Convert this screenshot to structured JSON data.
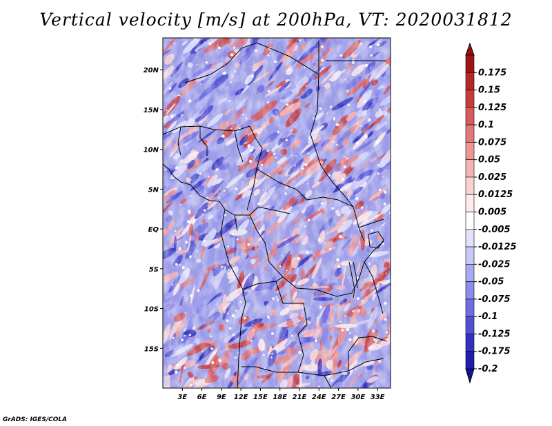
{
  "title": "Vertical velocity [m/s] at 200hPa, VT: 2020031812",
  "credit": "GrADS: IGES/COLA",
  "map": {
    "lon_range": [
      0,
      35
    ],
    "lat_range": [
      -20,
      24
    ],
    "lat_ticks": [
      {
        "lat": 20,
        "label": "20N"
      },
      {
        "lat": 15,
        "label": "15N"
      },
      {
        "lat": 10,
        "label": "10N"
      },
      {
        "lat": 5,
        "label": "5N"
      },
      {
        "lat": 0,
        "label": "EQ"
      },
      {
        "lat": -5,
        "label": "5S"
      },
      {
        "lat": -10,
        "label": "10S"
      },
      {
        "lat": -15,
        "label": "15S"
      }
    ],
    "lon_ticks": [
      {
        "lon": 3,
        "label": "3E"
      },
      {
        "lon": 6,
        "label": "6E"
      },
      {
        "lon": 9,
        "label": "9E"
      },
      {
        "lon": 12,
        "label": "12E"
      },
      {
        "lon": 15,
        "label": "15E"
      },
      {
        "lon": 18,
        "label": "18E"
      },
      {
        "lon": 21,
        "label": "21E"
      },
      {
        "lon": 24,
        "label": "24E"
      },
      {
        "lon": 27,
        "label": "27E"
      },
      {
        "lon": 30,
        "label": "30E"
      },
      {
        "lon": 33,
        "label": "33E"
      }
    ]
  },
  "colorbar": {
    "levels": [
      {
        "label": "0.175",
        "color": "#a01414"
      },
      {
        "label": "0.15",
        "color": "#b42828"
      },
      {
        "label": "0.125",
        "color": "#c83c3c"
      },
      {
        "label": "0.1",
        "color": "#d85a5a"
      },
      {
        "label": "0.075",
        "color": "#e47878"
      },
      {
        "label": "0.05",
        "color": "#ee9696"
      },
      {
        "label": "0.025",
        "color": "#f5b4b4"
      },
      {
        "label": "0.0125",
        "color": "#fad2d2"
      },
      {
        "label": "0.005",
        "color": "#fdeaea"
      },
      {
        "label": "-0.005",
        "color": "#ffffff"
      },
      {
        "label": "-0.0125",
        "color": "#e2e2fc"
      },
      {
        "label": "-0.025",
        "color": "#c8c8f8"
      },
      {
        "label": "-0.05",
        "color": "#aaaaf2"
      },
      {
        "label": "-0.075",
        "color": "#8c8cea"
      },
      {
        "label": "-0.1",
        "color": "#6e6ee0"
      },
      {
        "label": "-0.125",
        "color": "#5050d2"
      },
      {
        "label": "-0.175",
        "color": "#3232c0"
      },
      {
        "label": "-0.2",
        "color": "#1e1ea8"
      }
    ],
    "top_cap_color": "#961010",
    "bottom_cap_color": "#141496"
  }
}
